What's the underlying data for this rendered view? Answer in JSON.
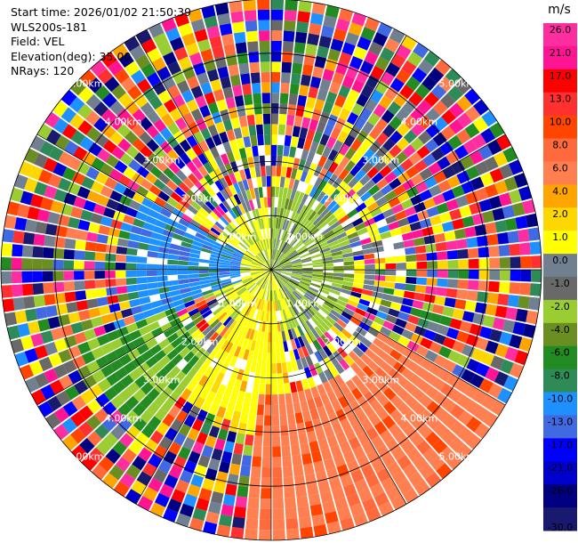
{
  "info": {
    "start_time": "Start time: 2026/01/02 21:50:39",
    "instrument": "WLS200s-181",
    "field": "Field: VEL",
    "elevation": "Elevation(deg): 35.00",
    "nrays": "NRays: 120"
  },
  "colorbar": {
    "unit": "m/s",
    "ticks": [
      "26.0",
      "21.0",
      "17.0",
      "13.0",
      "10.0",
      "8.0",
      "6.0",
      "4.0",
      "2.0",
      "1.0",
      "0.0",
      "-1.0",
      "-2.0",
      "-4.0",
      "-6.0",
      "-8.0",
      "-10.0",
      "-13.0",
      "-17.0",
      "-21.0",
      "-26.0",
      "-30.0"
    ],
    "colors": [
      "#ff2ea0",
      "#ff1493",
      "#ff0000",
      "#ff3030",
      "#ff4500",
      "#ff6a3d",
      "#ff7f50",
      "#ffa500",
      "#ffd700",
      "#ffff00",
      "#708090",
      "#696969",
      "#9acd32",
      "#6b8e23",
      "#228b22",
      "#2e8b57",
      "#1e90ff",
      "#4169e1",
      "#0000ff",
      "#0000cd",
      "#000080",
      "#191970"
    ]
  },
  "chart_data": {
    "type": "heatmap",
    "projection": "polar PPI",
    "field": "VEL",
    "units": "m/s",
    "nrays": 120,
    "range_rings_km": [
      "1.00km",
      "2.00km",
      "3.00km",
      "4.00km",
      "5.00km"
    ],
    "range_labels": [
      "1.00km",
      "2.00km",
      "3.00km",
      "4.00km",
      "5.00km",
      "1.00km",
      "2.00km",
      "3.00km",
      "4.00km",
      "5.00km",
      "1.00km",
      "2.00km",
      "3.00km",
      "4.00km",
      "5.00km",
      "1.00km",
      "2.00km",
      "3.00km",
      "4.00km",
      "5.00km"
    ],
    "max_range_km": 5.0,
    "grid": true,
    "notable_regions": [
      {
        "sector": "south to south-east",
        "range": "2.5-5 km",
        "velocity_m_s": 10.0
      },
      {
        "sector": "south",
        "range": "1-3 km",
        "velocity_m_s": 4.0
      },
      {
        "sector": "west",
        "range": "0.5-2.5 km",
        "velocity_m_s": -10.0
      },
      {
        "sector": "north-east",
        "range": "0-1.5 km",
        "velocity_m_s": -2.0
      }
    ]
  }
}
